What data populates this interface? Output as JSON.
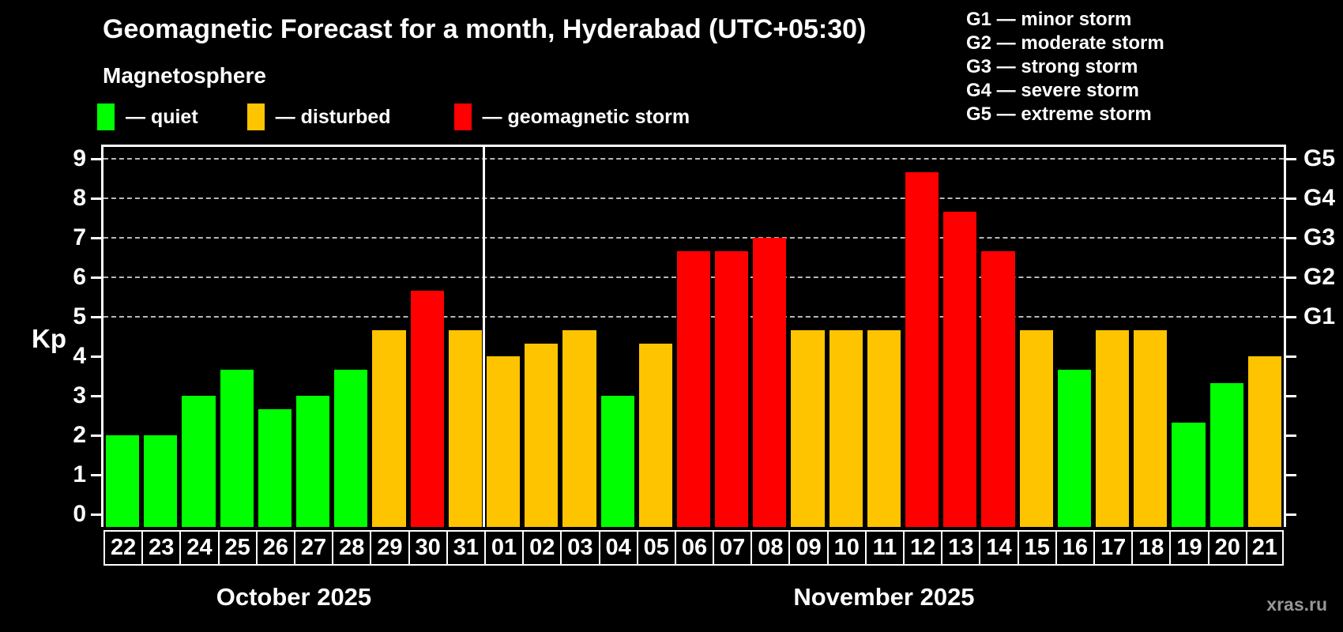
{
  "title": "Geomagnetic Forecast for a month, Hyderabad (UTC+05:30)",
  "subtitle": "Magnetosphere",
  "watermark": "xras.ru",
  "colors": {
    "quiet": "#00ff00",
    "disturbed": "#ffc400",
    "storm": "#ff0000",
    "grid": "#b8b8b8",
    "axis": "#ffffff",
    "watermark": "#969696"
  },
  "legend": [
    {
      "status": "quiet",
      "label": "— quiet"
    },
    {
      "status": "disturbed",
      "label": "— disturbed"
    },
    {
      "status": "storm",
      "label": "— geomagnetic storm"
    }
  ],
  "storm_scale": [
    {
      "code": "G1",
      "text": "G1 — minor storm"
    },
    {
      "code": "G2",
      "text": "G2 — moderate storm"
    },
    {
      "code": "G3",
      "text": "G3 — strong storm"
    },
    {
      "code": "G4",
      "text": "G4 — severe storm"
    },
    {
      "code": "G5",
      "text": "G5 — extreme storm"
    }
  ],
  "chart_data": {
    "type": "bar",
    "title": "Geomagnetic Forecast for a month, Hyderabad (UTC+05:30)",
    "xlabel": "",
    "ylabel": "Kp",
    "ylim": [
      0,
      9
    ],
    "yticks": [
      0,
      1,
      2,
      3,
      4,
      5,
      6,
      7,
      8,
      9
    ],
    "grid_levels": [
      5,
      6,
      7,
      8,
      9
    ],
    "grid_on": true,
    "legend_position": "top-left",
    "right_axis": [
      {
        "level": 5,
        "label": "G1"
      },
      {
        "level": 6,
        "label": "G2"
      },
      {
        "level": 7,
        "label": "G3"
      },
      {
        "level": 8,
        "label": "G4"
      },
      {
        "level": 9,
        "label": "G5"
      }
    ],
    "months": [
      {
        "label": "October 2025",
        "days_count": 10
      },
      {
        "label": "November 2025",
        "days_count": 21
      }
    ],
    "bars": [
      {
        "month": "October 2025",
        "day": "22",
        "value": 2.0,
        "status": "quiet"
      },
      {
        "month": "October 2025",
        "day": "23",
        "value": 2.0,
        "status": "quiet"
      },
      {
        "month": "October 2025",
        "day": "24",
        "value": 3.0,
        "status": "quiet"
      },
      {
        "month": "October 2025",
        "day": "25",
        "value": 3.67,
        "status": "quiet"
      },
      {
        "month": "October 2025",
        "day": "26",
        "value": 2.67,
        "status": "quiet"
      },
      {
        "month": "October 2025",
        "day": "27",
        "value": 3.0,
        "status": "quiet"
      },
      {
        "month": "October 2025",
        "day": "28",
        "value": 3.67,
        "status": "quiet"
      },
      {
        "month": "October 2025",
        "day": "29",
        "value": 4.67,
        "status": "disturbed"
      },
      {
        "month": "October 2025",
        "day": "30",
        "value": 5.67,
        "status": "storm"
      },
      {
        "month": "October 2025",
        "day": "31",
        "value": 4.67,
        "status": "disturbed"
      },
      {
        "month": "November 2025",
        "day": "01",
        "value": 4.0,
        "status": "disturbed"
      },
      {
        "month": "November 2025",
        "day": "02",
        "value": 4.33,
        "status": "disturbed"
      },
      {
        "month": "November 2025",
        "day": "03",
        "value": 4.67,
        "status": "disturbed"
      },
      {
        "month": "November 2025",
        "day": "04",
        "value": 3.0,
        "status": "quiet"
      },
      {
        "month": "November 2025",
        "day": "05",
        "value": 4.33,
        "status": "disturbed"
      },
      {
        "month": "November 2025",
        "day": "06",
        "value": 6.67,
        "status": "storm"
      },
      {
        "month": "November 2025",
        "day": "07",
        "value": 6.67,
        "status": "storm"
      },
      {
        "month": "November 2025",
        "day": "08",
        "value": 7.0,
        "status": "storm"
      },
      {
        "month": "November 2025",
        "day": "09",
        "value": 4.67,
        "status": "disturbed"
      },
      {
        "month": "November 2025",
        "day": "10",
        "value": 4.67,
        "status": "disturbed"
      },
      {
        "month": "November 2025",
        "day": "11",
        "value": 4.67,
        "status": "disturbed"
      },
      {
        "month": "November 2025",
        "day": "12",
        "value": 8.67,
        "status": "storm"
      },
      {
        "month": "November 2025",
        "day": "13",
        "value": 7.67,
        "status": "storm"
      },
      {
        "month": "November 2025",
        "day": "14",
        "value": 6.67,
        "status": "storm"
      },
      {
        "month": "November 2025",
        "day": "15",
        "value": 4.67,
        "status": "disturbed"
      },
      {
        "month": "November 2025",
        "day": "16",
        "value": 3.67,
        "status": "quiet"
      },
      {
        "month": "November 2025",
        "day": "17",
        "value": 4.67,
        "status": "disturbed"
      },
      {
        "month": "November 2025",
        "day": "18",
        "value": 4.67,
        "status": "disturbed"
      },
      {
        "month": "November 2025",
        "day": "19",
        "value": 2.33,
        "status": "quiet"
      },
      {
        "month": "November 2025",
        "day": "20",
        "value": 3.33,
        "status": "quiet"
      },
      {
        "month": "November 2025",
        "day": "21",
        "value": 4.0,
        "status": "disturbed"
      }
    ]
  }
}
